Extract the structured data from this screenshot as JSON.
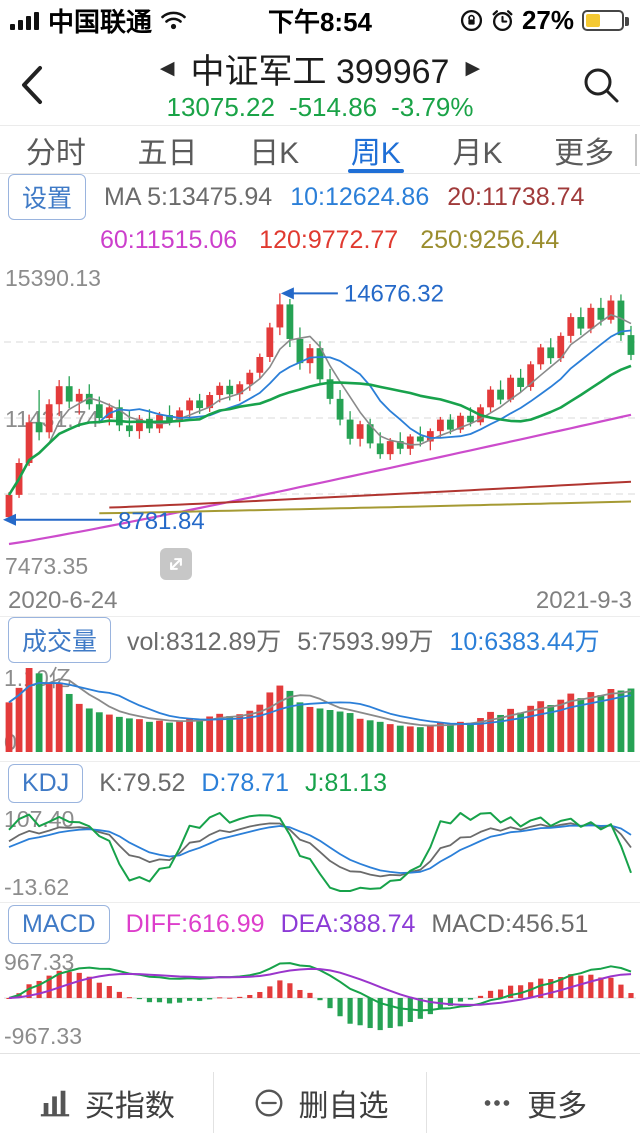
{
  "status_bar": {
    "carrier": "中国联通",
    "time": "下午8:54",
    "battery": "27%"
  },
  "header": {
    "title": "中证军工 399967",
    "price": "13075.22",
    "change": "-514.86",
    "change_pct": "-3.79%"
  },
  "tabs": [
    {
      "label": "分时"
    },
    {
      "label": "五日"
    },
    {
      "label": "日K"
    },
    {
      "label": "周K"
    },
    {
      "label": "月K"
    },
    {
      "label": "更多"
    }
  ],
  "active_tab_index": 3,
  "controls": {
    "settings_label": "设置"
  },
  "ma_row1": {
    "ma5": "MA 5:13475.94",
    "ma10": "10:12624.86",
    "ma20": "20:11738.74"
  },
  "ma_row2": {
    "ma60": "60:11515.06",
    "ma120": "120:9772.77",
    "ma250": "250:9256.44"
  },
  "main_chart": {
    "y_max_label": "15390.13",
    "y_mid_label": "11431.74",
    "y_min_label": "7473.35",
    "high_annotation_label": "14676.32",
    "low_annotation_label": "8781.84",
    "date_start": "2020-6-24",
    "date_end": "2021-9-3"
  },
  "volume": {
    "button": "成交量",
    "vol": "vol:8312.89万",
    "ma5": "5:7593.99万",
    "ma10": "10:6383.44万",
    "y_max_label": "1.10亿",
    "y_min_label": "0"
  },
  "kdj": {
    "button": "KDJ",
    "k": "K:79.52",
    "d": "D:78.71",
    "j": "J:81.13",
    "y_max_label": "107.40",
    "y_min_label": "-13.62"
  },
  "macd": {
    "button": "MACD",
    "diff": "DIFF:616.99",
    "dea": "DEA:388.74",
    "macd": "MACD:456.51",
    "y_max_label": "967.33",
    "y_min_label": "-967.33"
  },
  "toolbar": [
    {
      "label": "买指数"
    },
    {
      "label": "删自选"
    },
    {
      "label": "更多"
    }
  ],
  "colors": {
    "up": "#e33b3b",
    "down": "#26a254",
    "price_green": "#1aa347",
    "annotation_blue": "#2569c8",
    "ma5": "#8a8a8a",
    "ma10": "#2b7fd8",
    "ma20": "#18a24c",
    "ma60": "#cc4ccc",
    "ma120": "#b03530",
    "ma250": "#a59a33",
    "kdj_k": "#6b6b6b",
    "kdj_d": "#2b7fd8",
    "kdj_j": "#17a24a",
    "diff_line": "#17a24a",
    "dea_line": "#9a35cc",
    "axis_label": "#8c8c8c",
    "grid": "#d9d9d9"
  },
  "chart_data": {
    "type": "candlestick",
    "period": "weekly",
    "symbol": "399967",
    "title": "中证军工 399967 周K",
    "date_range": [
      "2020-6-24",
      "2021-9-3"
    ],
    "y_axis": {
      "max": 15390.13,
      "mid": 11431.74,
      "min": 7473.35
    },
    "annotations": {
      "highest": 14676.32,
      "lowest": 8781.84
    },
    "volume_axis_max_wan": 11000,
    "kdj_axis": {
      "max": 107.4,
      "min": -13.62
    },
    "macd_axis": {
      "max": 967.33,
      "min": -967.33
    },
    "columns": [
      "open",
      "high",
      "low",
      "close",
      "volume_wan"
    ],
    "candles": [
      [
        8850,
        9500,
        8781.84,
        9430,
        6500
      ],
      [
        9430,
        10380,
        9350,
        10260,
        8400
      ],
      [
        10260,
        11520,
        10180,
        11320,
        11000
      ],
      [
        11320,
        12160,
        10850,
        11060,
        10300
      ],
      [
        11060,
        11920,
        10900,
        11790,
        8900
      ],
      [
        11790,
        12420,
        11480,
        12260,
        9100
      ],
      [
        12260,
        12520,
        11690,
        11860,
        7600
      ],
      [
        11860,
        12190,
        11520,
        12060,
        6300
      ],
      [
        12060,
        12310,
        11650,
        11790,
        5700
      ],
      [
        11790,
        11990,
        11290,
        11430,
        5200
      ],
      [
        11430,
        11810,
        11240,
        11710,
        4900
      ],
      [
        11710,
        11910,
        11090,
        11240,
        4600
      ],
      [
        11240,
        11610,
        10940,
        11090,
        4400
      ],
      [
        11090,
        11510,
        10890,
        11410,
        4300
      ],
      [
        11410,
        11660,
        11040,
        11160,
        3950
      ],
      [
        11160,
        11590,
        11040,
        11510,
        4100
      ],
      [
        11510,
        11760,
        11240,
        11350,
        3850
      ],
      [
        11350,
        11710,
        11190,
        11630,
        4000
      ],
      [
        11630,
        11960,
        11440,
        11890,
        4400
      ],
      [
        11890,
        12060,
        11540,
        11690,
        4200
      ],
      [
        11690,
        12110,
        11590,
        12030,
        4650
      ],
      [
        12030,
        12360,
        11840,
        12270,
        5000
      ],
      [
        12270,
        12430,
        11890,
        12050,
        4700
      ],
      [
        12050,
        12390,
        11870,
        12310,
        4950
      ],
      [
        12310,
        12690,
        12140,
        12610,
        5400
      ],
      [
        12610,
        13110,
        12440,
        13020,
        6200
      ],
      [
        13020,
        13910,
        12890,
        13790,
        7800
      ],
      [
        13790,
        14676.32,
        13590,
        14390,
        8700
      ],
      [
        14390,
        14530,
        13280,
        13490,
        8000
      ],
      [
        13490,
        13790,
        12690,
        12860,
        6500
      ],
      [
        12860,
        13360,
        12590,
        13250,
        5900
      ],
      [
        13250,
        13430,
        12290,
        12440,
        5700
      ],
      [
        12440,
        12710,
        11790,
        11930,
        5500
      ],
      [
        11930,
        12160,
        11240,
        11390,
        5300
      ],
      [
        11390,
        11610,
        10740,
        10890,
        5100
      ],
      [
        10890,
        11360,
        10690,
        11270,
        4350
      ],
      [
        11270,
        11410,
        10640,
        10770,
        4150
      ],
      [
        10770,
        11060,
        10370,
        10490,
        3950
      ],
      [
        10490,
        10910,
        10340,
        10830,
        3650
      ],
      [
        10830,
        11060,
        10490,
        10630,
        3450
      ],
      [
        10630,
        11010,
        10470,
        10950,
        3350
      ],
      [
        10950,
        11210,
        10690,
        10820,
        3250
      ],
      [
        10820,
        11160,
        10590,
        11090,
        3550
      ],
      [
        11090,
        11460,
        10940,
        11390,
        3850
      ],
      [
        11390,
        11530,
        11010,
        11130,
        3650
      ],
      [
        11130,
        11570,
        11040,
        11490,
        3950
      ],
      [
        11490,
        11710,
        11210,
        11320,
        3750
      ],
      [
        11320,
        11790,
        11240,
        11710,
        4450
      ],
      [
        11710,
        12260,
        11590,
        12170,
        5250
      ],
      [
        12170,
        12410,
        11790,
        11910,
        4850
      ],
      [
        11910,
        12560,
        11840,
        12480,
        5650
      ],
      [
        12480,
        12710,
        12090,
        12240,
        5150
      ],
      [
        12240,
        12910,
        12140,
        12830,
        6050
      ],
      [
        12830,
        13360,
        12690,
        13270,
        6650
      ],
      [
        13270,
        13510,
        12840,
        12990,
        6150
      ],
      [
        12990,
        13660,
        12890,
        13570,
        6850
      ],
      [
        13570,
        14160,
        13390,
        14060,
        7650
      ],
      [
        14060,
        14310,
        13590,
        13760,
        7050
      ],
      [
        13760,
        14410,
        13640,
        14300,
        7850
      ],
      [
        14300,
        14560,
        13840,
        13990,
        7450
      ],
      [
        13990,
        14630,
        13890,
        14490,
        8250
      ],
      [
        14490,
        14650,
        13440,
        13590.08,
        8050
      ],
      [
        13590.08,
        13830,
        12940,
        13075.22,
        8312.89
      ]
    ],
    "overlay_ma_endpoints": {
      "ma60": {
        "start": 8150,
        "end": 11515.06,
        "from_index": 0
      },
      "ma120": {
        "start": 9100,
        "end": 9772.77,
        "from_index": 10
      },
      "ma250": {
        "start": 8950,
        "end": 9256.44,
        "from_index": 9
      }
    }
  }
}
